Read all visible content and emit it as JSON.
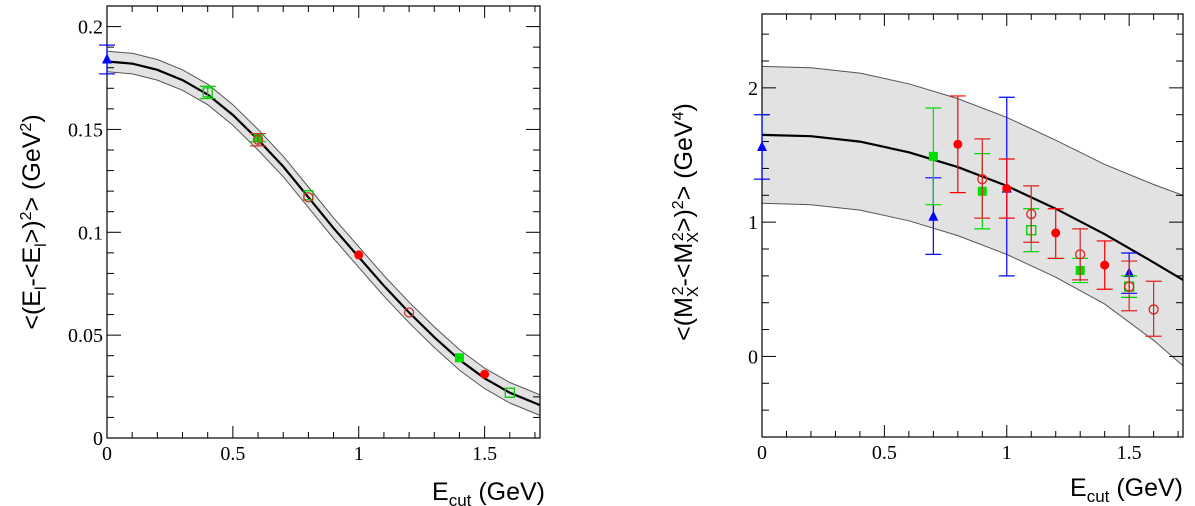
{
  "chart_data": [
    {
      "type": "scatter",
      "xlabel_main": "E",
      "xlabel_sub": "cut",
      "xlabel_unit": " (GeV)",
      "ylabel_text": "<(Eₗ-<Eₗ>)²> (GeV²)",
      "ylabel_parts": [
        "<(E",
        "l",
        "-<E",
        "l",
        ">)",
        "2",
        "> (GeV",
        "2",
        ")"
      ],
      "xlim": [
        0,
        1.72
      ],
      "ylim": [
        0,
        0.21
      ],
      "x_ticks": [
        0,
        0.5,
        1,
        1.5
      ],
      "x_tick_labels": [
        "0",
        "0.5",
        "1",
        "1.5"
      ],
      "y_ticks": [
        0,
        0.05,
        0.1,
        0.15,
        0.2
      ],
      "y_tick_labels": [
        "0",
        "0.05",
        "0.1",
        "0.15",
        "0.2"
      ],
      "fit_curve": {
        "x": [
          0,
          0.1,
          0.2,
          0.3,
          0.4,
          0.5,
          0.6,
          0.7,
          0.8,
          0.9,
          1.0,
          1.1,
          1.2,
          1.3,
          1.4,
          1.5,
          1.6,
          1.72
        ],
        "y": [
          0.183,
          0.182,
          0.179,
          0.174,
          0.167,
          0.157,
          0.145,
          0.132,
          0.117,
          0.102,
          0.088,
          0.074,
          0.061,
          0.049,
          0.038,
          0.029,
          0.022,
          0.016
        ],
        "band_halfwidth": [
          0.005,
          0.005,
          0.005,
          0.005,
          0.005,
          0.005,
          0.005,
          0.005,
          0.005,
          0.005,
          0.005,
          0.005,
          0.005,
          0.005,
          0.005,
          0.005,
          0.005,
          0.005
        ]
      },
      "series": [
        {
          "name": "blue-triangle",
          "marker": "triangle",
          "filled": true,
          "color": "#0000ff",
          "points": [
            {
              "x": 0.0,
              "y": 0.184,
              "err": 0.007
            }
          ]
        },
        {
          "name": "green-square-filled",
          "marker": "square",
          "filled": true,
          "color": "#00dd00",
          "points": [
            {
              "x": 0.6,
              "y": 0.146,
              "err": 0.002
            },
            {
              "x": 1.4,
              "y": 0.039,
              "err": 0.0
            }
          ]
        },
        {
          "name": "green-square-open",
          "marker": "square",
          "filled": false,
          "color": "#00cc00",
          "points": [
            {
              "x": 0.4,
              "y": 0.168,
              "err": 0.003
            },
            {
              "x": 0.8,
              "y": 0.118,
              "err": 0.0
            },
            {
              "x": 1.6,
              "y": 0.022,
              "err": 0.0
            }
          ]
        },
        {
          "name": "red-circle-filled",
          "marker": "circle",
          "filled": true,
          "color": "#ff0000",
          "points": [
            {
              "x": 1.0,
              "y": 0.089,
              "err": 0.0
            },
            {
              "x": 1.5,
              "y": 0.031,
              "err": 0.0
            }
          ]
        },
        {
          "name": "red-circle-open",
          "marker": "circle",
          "filled": false,
          "color": "#cc3333",
          "points": [
            {
              "x": 0.6,
              "y": 0.145,
              "err": 0.003
            },
            {
              "x": 0.8,
              "y": 0.117,
              "err": 0.0
            },
            {
              "x": 1.2,
              "y": 0.061,
              "err": 0.0
            }
          ]
        }
      ]
    },
    {
      "type": "scatter",
      "xlabel_main": "E",
      "xlabel_sub": "cut",
      "xlabel_unit": " (GeV)",
      "ylabel_text": "<(Mₓ²-<Mₓ²>)²> (GeV⁴)",
      "ylabel_parts": [
        "<(M",
        "X",
        "2",
        "-<M",
        "X",
        "2",
        ">)",
        "2",
        "> (GeV",
        "4",
        ")"
      ],
      "xlim": [
        0,
        1.72
      ],
      "ylim": [
        -0.6,
        2.55
      ],
      "x_ticks": [
        0,
        0.5,
        1,
        1.5
      ],
      "x_tick_labels": [
        "0",
        "0.5",
        "1",
        "1.5"
      ],
      "y_ticks": [
        0,
        1,
        2
      ],
      "y_tick_labels": [
        "0",
        "1",
        "2"
      ],
      "fit_curve": {
        "x": [
          0,
          0.2,
          0.4,
          0.6,
          0.8,
          1.0,
          1.2,
          1.4,
          1.6,
          1.72
        ],
        "y": [
          1.65,
          1.64,
          1.6,
          1.52,
          1.41,
          1.27,
          1.1,
          0.91,
          0.7,
          0.57
        ],
        "band_upper": [
          2.16,
          2.15,
          2.11,
          2.03,
          1.92,
          1.78,
          1.61,
          1.43,
          1.28,
          1.2
        ],
        "band_lower": [
          1.14,
          1.13,
          1.09,
          1.01,
          0.9,
          0.76,
          0.59,
          0.39,
          0.12,
          -0.07
        ]
      },
      "series": [
        {
          "name": "blue-triangle",
          "marker": "triangle",
          "filled": true,
          "color": "#0000ff",
          "points": [
            {
              "x": 0.0,
              "y": 1.56,
              "lo": 1.32,
              "hi": 1.8
            },
            {
              "x": 0.7,
              "y": 1.04,
              "lo": 0.76,
              "hi": 1.33
            },
            {
              "x": 1.0,
              "y": 1.25,
              "lo": 0.6,
              "hi": 1.93
            },
            {
              "x": 1.5,
              "y": 0.62,
              "lo": 0.47,
              "hi": 0.77
            }
          ]
        },
        {
          "name": "green-square-filled",
          "marker": "square",
          "filled": true,
          "color": "#00dd00",
          "points": [
            {
              "x": 0.7,
              "y": 1.49,
              "lo": 1.13,
              "hi": 1.85
            },
            {
              "x": 0.9,
              "y": 1.23,
              "lo": 0.95,
              "hi": 1.51
            },
            {
              "x": 1.3,
              "y": 0.64,
              "lo": 0.55,
              "hi": 0.73
            }
          ]
        },
        {
          "name": "green-square-open",
          "marker": "square",
          "filled": false,
          "color": "#00cc00",
          "points": [
            {
              "x": 1.1,
              "y": 0.94,
              "lo": 0.78,
              "hi": 1.1
            },
            {
              "x": 1.5,
              "y": 0.52,
              "lo": 0.44,
              "hi": 0.6
            }
          ]
        },
        {
          "name": "red-circle-filled",
          "marker": "circle",
          "filled": true,
          "color": "#ff0000",
          "points": [
            {
              "x": 0.8,
              "y": 1.58,
              "lo": 1.22,
              "hi": 1.94
            },
            {
              "x": 1.0,
              "y": 1.25,
              "lo": 1.03,
              "hi": 1.47
            },
            {
              "x": 1.2,
              "y": 0.92,
              "lo": 0.73,
              "hi": 1.1
            },
            {
              "x": 1.4,
              "y": 0.68,
              "lo": 0.5,
              "hi": 0.86
            }
          ]
        },
        {
          "name": "red-circle-open",
          "marker": "circle",
          "filled": false,
          "color": "#dd2222",
          "points": [
            {
              "x": 0.9,
              "y": 1.32,
              "lo": 1.03,
              "hi": 1.62
            },
            {
              "x": 1.1,
              "y": 1.06,
              "lo": 0.85,
              "hi": 1.27
            },
            {
              "x": 1.3,
              "y": 0.76,
              "lo": 0.57,
              "hi": 0.95
            },
            {
              "x": 1.5,
              "y": 0.52,
              "lo": 0.34,
              "hi": 0.71
            },
            {
              "x": 1.6,
              "y": 0.35,
              "lo": 0.15,
              "hi": 0.56
            }
          ]
        }
      ]
    }
  ]
}
